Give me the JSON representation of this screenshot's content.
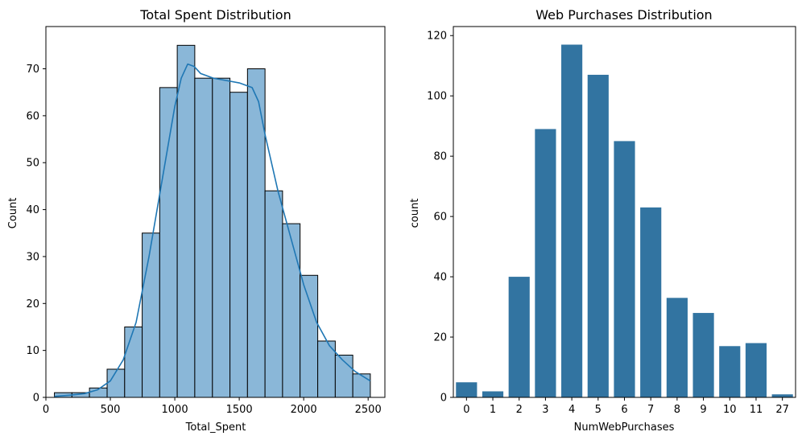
{
  "chart_data": [
    {
      "type": "bar",
      "subtype": "histogram-with-kde",
      "title": "Total Spent Distribution",
      "xlabel": "Total_Spent",
      "ylabel": "Count",
      "xlim": [
        0,
        2630
      ],
      "ylim": [
        0,
        79
      ],
      "xticks": [
        0,
        500,
        1000,
        1500,
        2000,
        2500
      ],
      "yticks": [
        0,
        10,
        20,
        30,
        40,
        50,
        60,
        70
      ],
      "bins": [
        {
          "start": 66,
          "end": 202,
          "count": 1
        },
        {
          "start": 202,
          "end": 338,
          "count": 1
        },
        {
          "start": 338,
          "end": 475,
          "count": 2
        },
        {
          "start": 475,
          "end": 611,
          "count": 6
        },
        {
          "start": 611,
          "end": 747,
          "count": 15
        },
        {
          "start": 747,
          "end": 883,
          "count": 35
        },
        {
          "start": 883,
          "end": 1019,
          "count": 66
        },
        {
          "start": 1019,
          "end": 1155,
          "count": 75
        },
        {
          "start": 1155,
          "end": 1292,
          "count": 68
        },
        {
          "start": 1292,
          "end": 1428,
          "count": 68
        },
        {
          "start": 1428,
          "end": 1564,
          "count": 65
        },
        {
          "start": 1564,
          "end": 1700,
          "count": 70
        },
        {
          "start": 1700,
          "end": 1836,
          "count": 44
        },
        {
          "start": 1836,
          "end": 1972,
          "count": 37
        },
        {
          "start": 1972,
          "end": 2109,
          "count": 26
        },
        {
          "start": 2109,
          "end": 2245,
          "count": 12
        },
        {
          "start": 2245,
          "end": 2381,
          "count": 9
        },
        {
          "start": 2381,
          "end": 2517,
          "count": 5
        }
      ],
      "kde": {
        "x": [
          66,
          200,
          300,
          400,
          500,
          600,
          700,
          800,
          900,
          1000,
          1050,
          1100,
          1150,
          1200,
          1300,
          1400,
          1500,
          1600,
          1650,
          1700,
          1800,
          1900,
          2000,
          2100,
          2200,
          2300,
          2400,
          2517
        ],
        "y": [
          0.2,
          0.5,
          0.8,
          1.6,
          3.5,
          8,
          16,
          30,
          46,
          62,
          68,
          71,
          70.5,
          69,
          68,
          67.5,
          67,
          66,
          63,
          56,
          44,
          34,
          24,
          16,
          11,
          8,
          5.5,
          3.5
        ]
      },
      "colors": {
        "bar_fill": "#8ab7d8",
        "bar_edge": "#000000",
        "kde_line": "#1f77b4"
      }
    },
    {
      "type": "bar",
      "title": "Web Purchases Distribution",
      "xlabel": "NumWebPurchases",
      "ylabel": "count",
      "ylim": [
        0,
        123
      ],
      "yticks": [
        0,
        20,
        40,
        60,
        80,
        100,
        120
      ],
      "categories": [
        "0",
        "1",
        "2",
        "3",
        "4",
        "5",
        "6",
        "7",
        "8",
        "9",
        "10",
        "11",
        "27"
      ],
      "values": [
        5,
        2,
        40,
        89,
        117,
        107,
        85,
        63,
        33,
        28,
        17,
        18,
        1
      ],
      "colors": {
        "bar_fill": "#3274a1"
      }
    }
  ]
}
